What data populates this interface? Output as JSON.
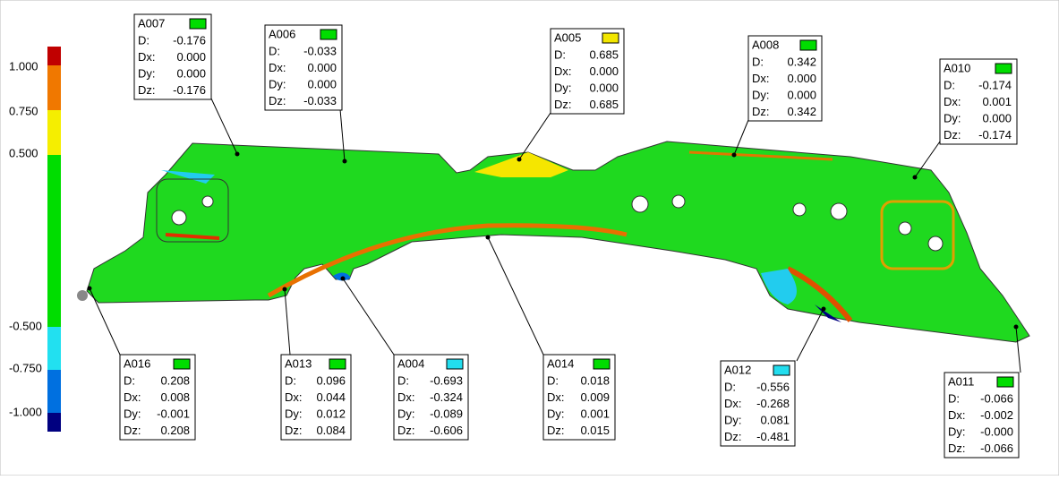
{
  "legend": {
    "labels": [
      "1.000",
      "0.750",
      "0.500",
      "-0.500",
      "-0.750",
      "-1.000"
    ]
  },
  "row_labels": [
    "D:",
    "Dx:",
    "Dy:",
    "Dz:"
  ],
  "callouts": [
    {
      "name": "A007",
      "color": "#00dd00",
      "values": [
        "-0.176",
        "0.000",
        "0.000",
        "-0.176"
      ]
    },
    {
      "name": "A006",
      "color": "#00dd00",
      "values": [
        "-0.033",
        "0.000",
        "0.000",
        "-0.033"
      ]
    },
    {
      "name": "A005",
      "color": "#f2e600",
      "values": [
        "0.685",
        "0.000",
        "0.000",
        "0.685"
      ]
    },
    {
      "name": "A008",
      "color": "#00dd00",
      "values": [
        "0.342",
        "0.000",
        "0.000",
        "0.342"
      ]
    },
    {
      "name": "A010",
      "color": "#00dd00",
      "values": [
        "-0.174",
        "0.001",
        "0.000",
        "-0.174"
      ]
    },
    {
      "name": "A016",
      "color": "#00dd00",
      "values": [
        "0.208",
        "0.008",
        "-0.001",
        "0.208"
      ]
    },
    {
      "name": "A013",
      "color": "#00dd00",
      "values": [
        "0.096",
        "0.044",
        "0.012",
        "0.084"
      ]
    },
    {
      "name": "A004",
      "color": "#22ddee",
      "values": [
        "-0.693",
        "-0.324",
        "-0.089",
        "-0.606"
      ]
    },
    {
      "name": "A014",
      "color": "#00dd00",
      "values": [
        "0.018",
        "0.009",
        "0.001",
        "0.015"
      ]
    },
    {
      "name": "A012",
      "color": "#22ddee",
      "values": [
        "-0.556",
        "-0.268",
        "0.081",
        "-0.481"
      ]
    },
    {
      "name": "A011",
      "color": "#00dd00",
      "values": [
        "-0.066",
        "-0.002",
        "-0.000",
        "-0.066"
      ]
    }
  ]
}
